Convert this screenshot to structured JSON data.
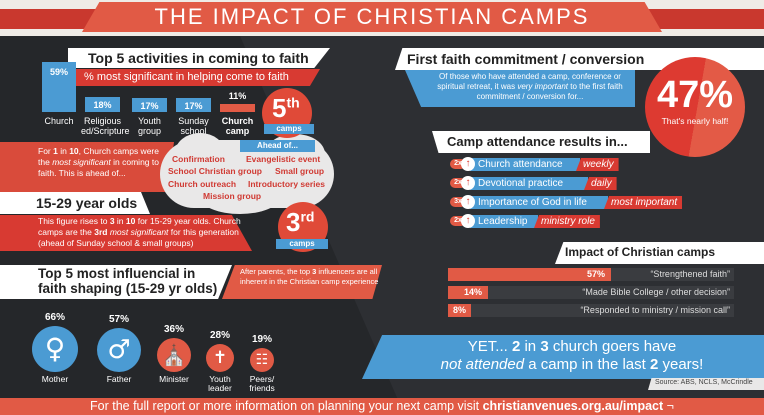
{
  "header": {
    "title": "THE IMPACT OF CHRISTIAN CAMPS"
  },
  "colors": {
    "red": "#d83a32",
    "coral": "#e15a45",
    "blue": "#4b9bd3",
    "dark": "#25272a",
    "white": "#ffffff"
  },
  "activities": {
    "title": "Top 5 activities in coming to faith",
    "subtitle": "% most significant in helping come to faith",
    "bars": [
      {
        "label": "Church",
        "label2": "",
        "value": 59,
        "display": "59%",
        "highlight": false
      },
      {
        "label": "Religious",
        "label2": "ed/Scripture",
        "value": 18,
        "display": "18%",
        "highlight": false
      },
      {
        "label": "Youth",
        "label2": "group",
        "value": 17,
        "display": "17%",
        "highlight": false
      },
      {
        "label": "Sunday",
        "label2": "school",
        "value": 17,
        "display": "17%",
        "highlight": false
      },
      {
        "label": "Church",
        "label2": "camp",
        "value": 11,
        "display": "11%",
        "highlight": true
      }
    ],
    "badge": {
      "rank": "5",
      "suffix": "th",
      "tag": "camps"
    },
    "desc": {
      "pre": "For ",
      "b1": "1",
      "mid": " in ",
      "b2": "10",
      "post1": ", Church camps were the ",
      "em": "most significant",
      "post2": " in coming to faith. This is ahead of..."
    },
    "ahead_label": "Ahead of...",
    "ahead_items": [
      "Confirmation",
      "Evangelistic event",
      "School Christian group",
      "Small group",
      "Church outreach",
      "Introductory series",
      "Mission group"
    ]
  },
  "youth": {
    "title": "15-29 year olds",
    "desc": {
      "t1": "This figure rises to ",
      "b1": "3",
      "t2": " in ",
      "b2": "10",
      "t3": " for 15-29 year olds. Church camps are the ",
      "b3": "3rd",
      "em": " most significant",
      "t4": " for this generation (ahead of Sunday school & small groups)"
    },
    "badge": {
      "rank": "3",
      "suffix": "rd",
      "tag": "camps"
    }
  },
  "influencers": {
    "title_line1": "Top 5 most influencial in",
    "title_line2": "faith shaping (15-29 yr olds)",
    "note": {
      "t1": "After parents, the top ",
      "b": "3",
      "t2": " influencers are all inherent in the Christian camp experience"
    },
    "items": [
      {
        "label": "Mother",
        "label2": "",
        "value": 66,
        "display": "66%",
        "icon": "woman-icon"
      },
      {
        "label": "Father",
        "label2": "",
        "value": 57,
        "display": "57%",
        "icon": "man-icon"
      },
      {
        "label": "Minister",
        "label2": "",
        "value": 36,
        "display": "36%",
        "icon": "church-icon"
      },
      {
        "label": "Youth",
        "label2": "leader",
        "value": 28,
        "display": "28%",
        "icon": "youth-leader-icon"
      },
      {
        "label": "Peers/",
        "label2": "friends",
        "value": 19,
        "display": "19%",
        "icon": "group-icon"
      }
    ]
  },
  "first_faith": {
    "title": "First faith commitment / conversion",
    "desc": {
      "t1": "Of those who have attended a camp, conference or spiritual retreat, it was ",
      "em": "very important",
      "t2": " to the first faith commitment / conversion for..."
    },
    "value": "47%",
    "note": "That's nearly half!"
  },
  "attendance": {
    "title": "Camp attendance results in...",
    "rows": [
      {
        "mult": "2x",
        "label": "Church attendance",
        "tag": "weekly"
      },
      {
        "mult": "2x",
        "label": "Devotional practice",
        "tag": "daily"
      },
      {
        "mult": "3x",
        "label": "Importance of God in life",
        "tag": "most important"
      },
      {
        "mult": "2x",
        "label": "Leadership",
        "tag": "ministry role"
      }
    ]
  },
  "impact": {
    "title": "Impact of Christian camps",
    "rows": [
      {
        "value": 57,
        "display": "57%",
        "label": "“Strengthened faith”"
      },
      {
        "value": 14,
        "display": "14%",
        "label": "“Made Bible College / other decision”"
      },
      {
        "value": 8,
        "display": "8%",
        "label": "“Responded to ministry / mission call”"
      }
    ]
  },
  "yet": {
    "l1_pre": "YET... ",
    "l1_b1": "2",
    "l1_mid": " in ",
    "l1_b2": "3",
    "l1_post": " church goers have",
    "l2_em": "not attended",
    "l2_mid": " a camp in the last ",
    "l2_b": "2",
    "l2_post": " years!"
  },
  "source": "Source: ABS, NCLS, McCrindle",
  "footer": {
    "text": "For the full report or more information on planning your next camp visit ",
    "link": "christianvenues.org.au/impact",
    "arrow": "¬"
  }
}
